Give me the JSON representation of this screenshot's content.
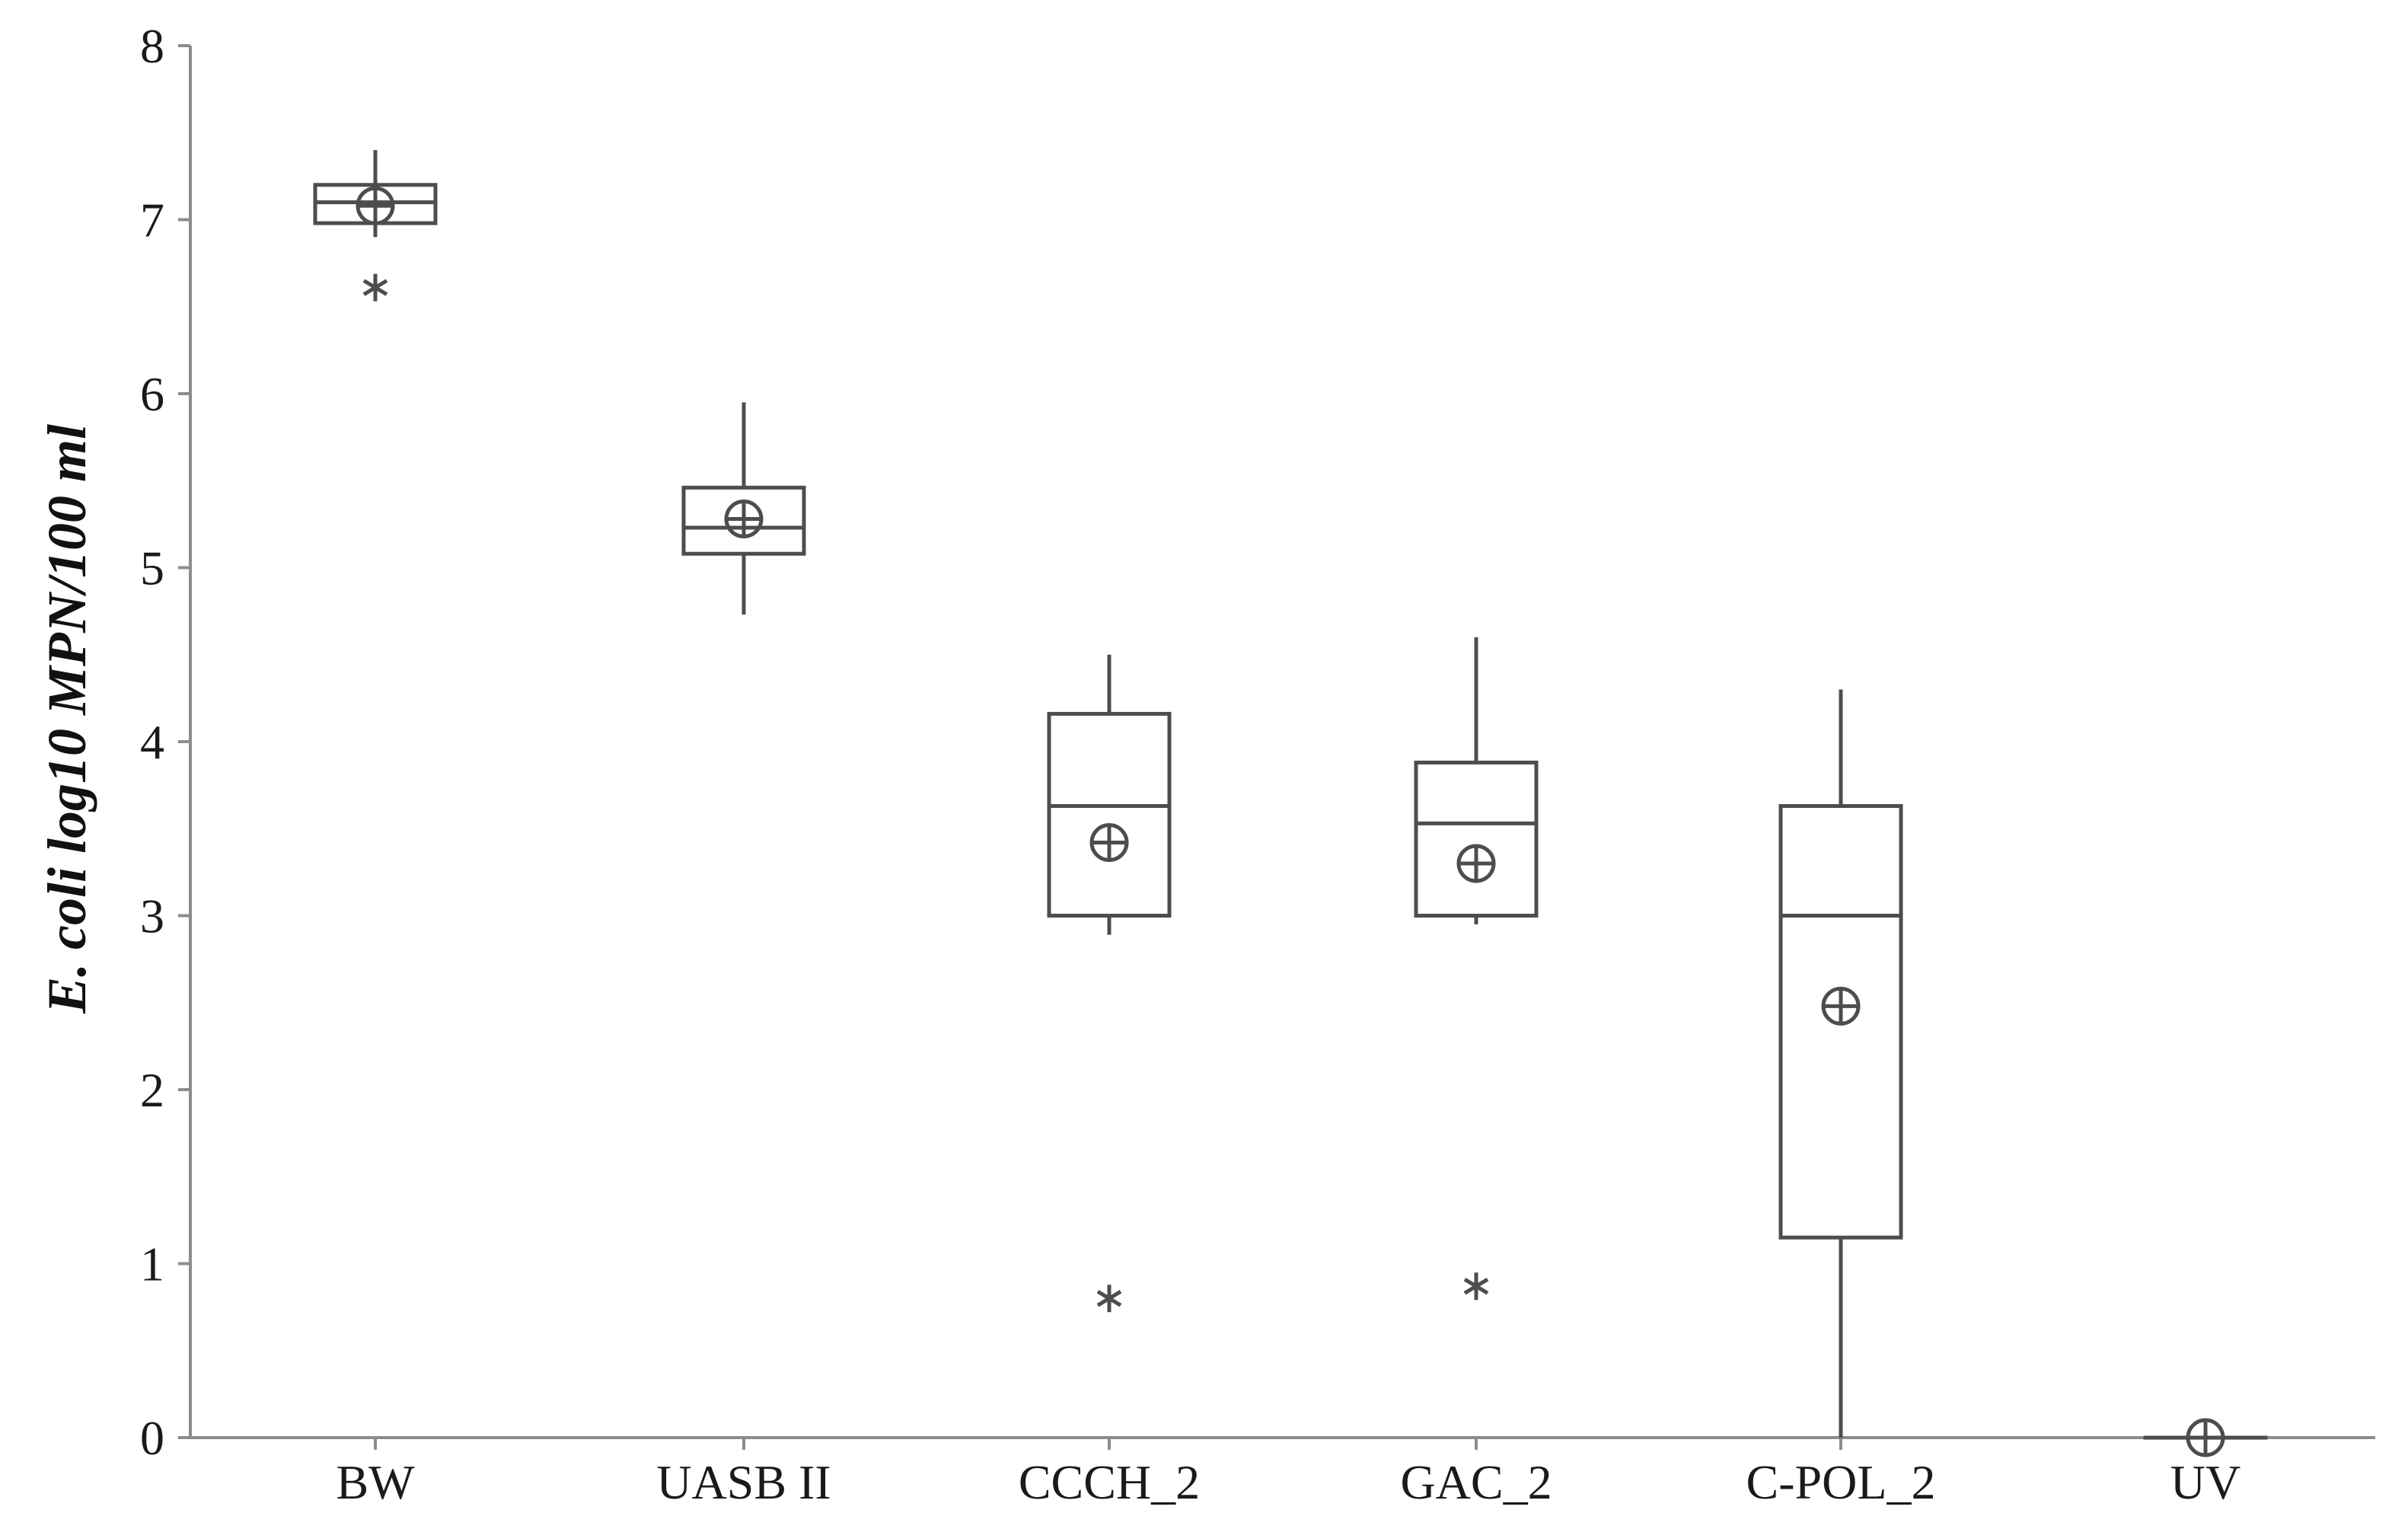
{
  "chart_data": {
    "type": "box",
    "title": "",
    "xlabel": "",
    "ylabel": "E. coli log10 MPN/100 ml",
    "ylim": [
      0,
      8
    ],
    "yticks": [
      "0",
      "1",
      "2",
      "3",
      "4",
      "5",
      "6",
      "7",
      "8"
    ],
    "grid": false,
    "legend": "none",
    "categories": [
      "BW",
      "UASB II",
      "CCCH_2",
      "GAC_2",
      "C-POL_2",
      "UV"
    ],
    "boxes": [
      {
        "category": "BW",
        "whisker_low": 6.9,
        "q1": 6.98,
        "median": 7.1,
        "q3": 7.2,
        "whisker_high": 7.4,
        "mean": 7.08,
        "outliers": [
          6.61
        ]
      },
      {
        "category": "UASB II",
        "whisker_low": 4.73,
        "q1": 5.08,
        "median": 5.23,
        "q3": 5.46,
        "whisker_high": 5.95,
        "mean": 5.28,
        "outliers": []
      },
      {
        "category": "CCCH_2",
        "whisker_low": 2.89,
        "q1": 3.0,
        "median": 3.63,
        "q3": 4.16,
        "whisker_high": 4.5,
        "mean": 3.42,
        "outliers": [
          0.8
        ]
      },
      {
        "category": "GAC_2",
        "whisker_low": 2.95,
        "q1": 3.0,
        "median": 3.53,
        "q3": 3.88,
        "whisker_high": 4.6,
        "mean": 3.3,
        "outliers": [
          0.87
        ]
      },
      {
        "category": "C-POL_2",
        "whisker_low": 0.0,
        "q1": 1.15,
        "median": 3.0,
        "q3": 3.63,
        "whisker_high": 4.3,
        "mean": 2.48,
        "outliers": []
      },
      {
        "category": "UV",
        "whisker_low": 0.0,
        "q1": 0.0,
        "median": 0.0,
        "q3": 0.0,
        "whisker_high": 0.0,
        "mean": 0.0,
        "outliers": []
      }
    ],
    "colors": {
      "box": "#4d4d4d",
      "axis": "#8c8c8c",
      "text": "#1a1a1a"
    }
  }
}
